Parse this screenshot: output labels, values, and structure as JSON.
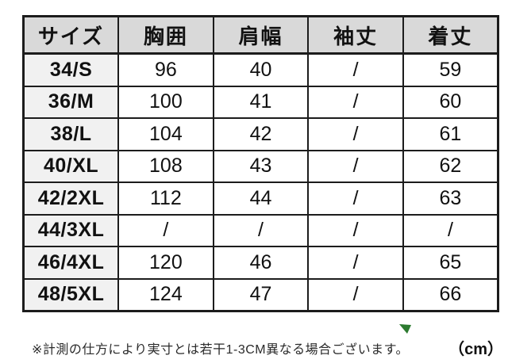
{
  "chart_data": {
    "type": "table",
    "columns": [
      "サイズ",
      "胸囲",
      "肩幅",
      "袖丈",
      "着丈"
    ],
    "rows": [
      [
        "34/S",
        "96",
        "40",
        "/",
        "59"
      ],
      [
        "36/M",
        "100",
        "41",
        "/",
        "60"
      ],
      [
        "38/L",
        "104",
        "42",
        "/",
        "61"
      ],
      [
        "40/XL",
        "108",
        "43",
        "/",
        "62"
      ],
      [
        "42/2XL",
        "112",
        "44",
        "/",
        "63"
      ],
      [
        "44/3XL",
        "/",
        "/",
        "/",
        "/"
      ],
      [
        "46/4XL",
        "120",
        "46",
        "/",
        "65"
      ],
      [
        "48/5XL",
        "124",
        "47",
        "/",
        "66"
      ]
    ],
    "title": "",
    "unit": "cm"
  },
  "footer": {
    "note": "※計測の仕方により実寸とは若干1-3CM異なる場合ございます。",
    "unit_label": "（cm）"
  },
  "icons": {
    "green_arrow": "small-green-triangle-pointer"
  },
  "colors": {
    "header_bg": "#d9d9d9",
    "size_col_bg": "#f1f1f1",
    "border": "#1c1c1c",
    "arrow_green": "#2c7a2f"
  }
}
